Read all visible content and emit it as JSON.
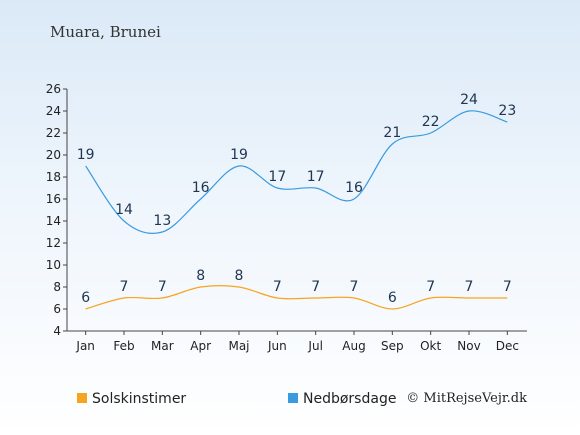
{
  "chart_data": {
    "type": "line",
    "title": "Muara, Brunei",
    "categories": [
      "Jan",
      "Feb",
      "Mar",
      "Apr",
      "Maj",
      "Jun",
      "Jul",
      "Aug",
      "Sep",
      "Okt",
      "Nov",
      "Dec"
    ],
    "y_ticks": [
      "4",
      "6",
      "8",
      "10",
      "12",
      "14",
      "16",
      "18",
      "20",
      "22",
      "24",
      "26"
    ],
    "ylim": [
      4,
      26
    ],
    "grid": false,
    "legend_position": "bottom",
    "series": [
      {
        "name": "Solskinstimer",
        "color": "#f7a420",
        "values": [
          6,
          7,
          7,
          8,
          8,
          7,
          7,
          7,
          6,
          7,
          7,
          7
        ]
      },
      {
        "name": "Nedbørsdage",
        "color": "#3a9ae0",
        "values": [
          19,
          14,
          13,
          16,
          19,
          17,
          17,
          16,
          21,
          22,
          24,
          23
        ]
      }
    ],
    "copyright": "© MitRejseVejr.dk"
  }
}
